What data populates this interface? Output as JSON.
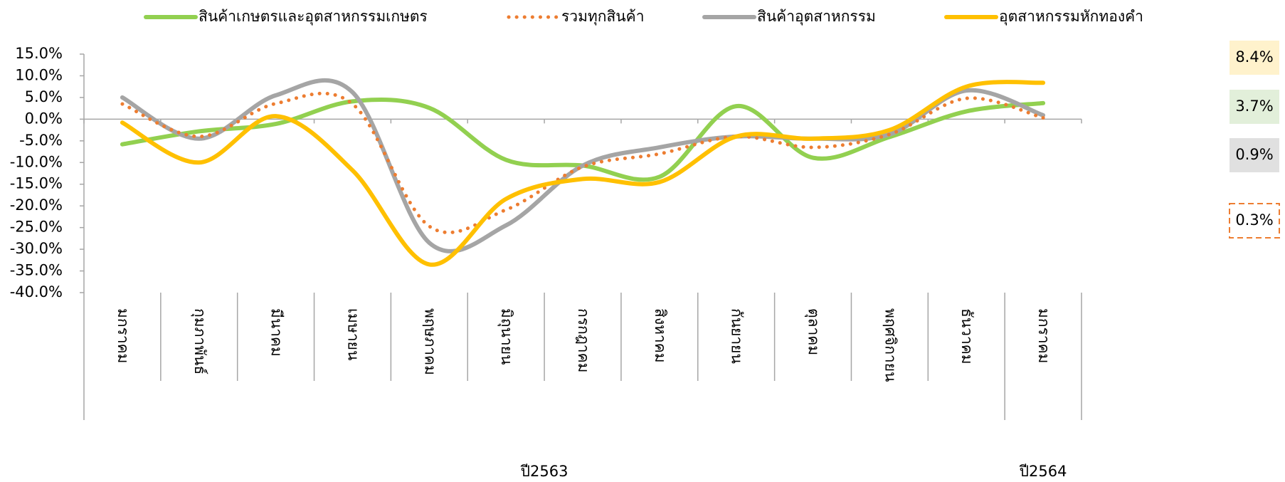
{
  "chart_data": {
    "type": "line",
    "categories": [
      "มกราคม",
      "กุมภาพันธ์",
      "มีนาคม",
      "เมษายน",
      "พฤษภาคม",
      "มิถุนายน",
      "กรกฎาคม",
      "สิงหาคม",
      "กันยายน",
      "ตุลาคม",
      "พฤศจิกายน",
      "ธันวาคม",
      "มกราคม"
    ],
    "groups": [
      {
        "name": "ปี2563",
        "count": 12
      },
      {
        "name": "ปี2564",
        "count": 1
      }
    ],
    "series": [
      {
        "name": "สินค้าเกษตรและอุตสาหกรรมเกษตร",
        "color": "#92d050",
        "style": "solid",
        "values": [
          -5.8,
          -2.8,
          -1.1,
          4.1,
          2.6,
          -9.4,
          -10.7,
          -13.3,
          3.0,
          -8.9,
          -4.1,
          1.8,
          3.7
        ],
        "value_labels": [
          null,
          null,
          null,
          null,
          null,
          null,
          null,
          null,
          null,
          null,
          null,
          null,
          "3.7%"
        ]
      },
      {
        "name": "รวมทุกสินค้า",
        "color": "#ed7d31",
        "style": "dotted",
        "values": [
          3.5,
          -4.0,
          3.6,
          3.5,
          -24.7,
          -20.9,
          -11.0,
          -8.0,
          -4.0,
          -6.5,
          -3.5,
          4.8,
          0.3
        ],
        "value_labels": [
          null,
          null,
          null,
          null,
          null,
          null,
          null,
          null,
          null,
          null,
          null,
          null,
          "0.3%"
        ]
      },
      {
        "name": "สินค้าอุตสาหกรรม",
        "color": "#a5a5a5",
        "style": "solid",
        "values": [
          5.0,
          -4.5,
          5.5,
          6.2,
          -28.5,
          -24.5,
          -10.7,
          -6.5,
          -4.0,
          -4.5,
          -3.5,
          6.6,
          0.9
        ],
        "value_labels": [
          null,
          null,
          null,
          null,
          null,
          null,
          null,
          null,
          null,
          null,
          null,
          null,
          "0.9%"
        ]
      },
      {
        "name": "อุตสาหกรรมหักทองคำ",
        "color": "#ffc000",
        "style": "solid",
        "values": [
          -0.8,
          -10.0,
          0.7,
          -11.8,
          -33.5,
          -18.4,
          -13.8,
          -14.5,
          -4.0,
          -4.5,
          -2.5,
          7.5,
          8.4
        ],
        "value_labels": [
          null,
          null,
          null,
          null,
          null,
          null,
          null,
          null,
          null,
          null,
          null,
          null,
          "8.4%"
        ]
      }
    ],
    "ylim": [
      -40,
      15
    ],
    "yticks": [
      {
        "value": 15,
        "label": "15.0%"
      },
      {
        "value": 10,
        "label": "10.0%"
      },
      {
        "value": 5,
        "label": "5.0%"
      },
      {
        "value": 0,
        "label": "0.0%"
      },
      {
        "value": -5,
        "label": "-5.0%"
      },
      {
        "value": -10,
        "label": "-10.0%"
      },
      {
        "value": -15,
        "label": "-15.0%"
      },
      {
        "value": -20,
        "label": "-20.0%"
      },
      {
        "value": -25,
        "label": "-25.0%"
      },
      {
        "value": -30,
        "label": "-30.0%"
      },
      {
        "value": -35,
        "label": "-35.0%"
      },
      {
        "value": -40,
        "label": "-40.0%"
      }
    ],
    "legend": "top"
  }
}
